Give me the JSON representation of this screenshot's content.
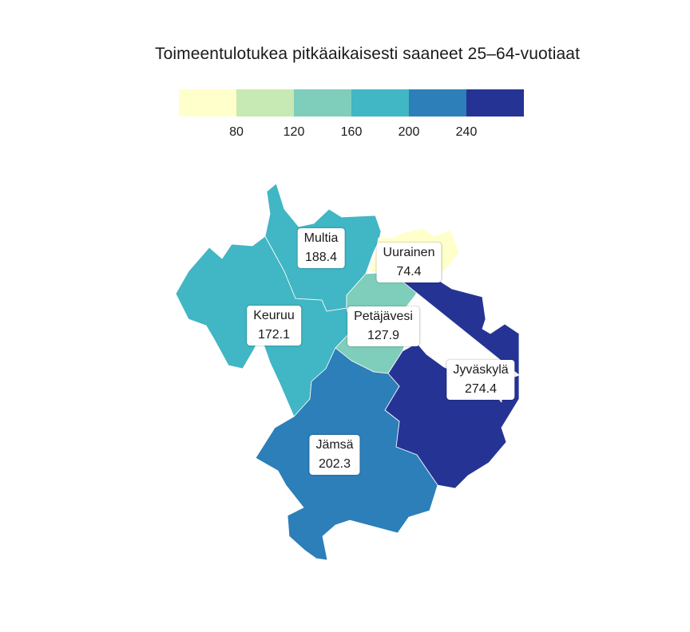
{
  "title": "Toimeentulotukea pitkäaikaisesti saaneet 25–64-vuotiaat",
  "legend": {
    "colors": [
      "#ffffcc",
      "#c7e9b4",
      "#7fcdbb",
      "#41b6c4",
      "#2c7fb8",
      "#253494"
    ],
    "breaks": [
      80,
      120,
      160,
      200,
      240
    ],
    "tick_labels": [
      "80",
      "120",
      "160",
      "200",
      "240"
    ]
  },
  "regions": [
    {
      "id": "multia",
      "name": "Multia",
      "value": 188.4,
      "value_label": "188.4",
      "color": "#41b6c4"
    },
    {
      "id": "uurainen",
      "name": "Uurainen",
      "value": 74.4,
      "value_label": "74.4",
      "color": "#ffffcc"
    },
    {
      "id": "keuruu",
      "name": "Keuruu",
      "value": 172.1,
      "value_label": "172.1",
      "color": "#41b6c4"
    },
    {
      "id": "petajavesi",
      "name": "Petäjävesi",
      "value": 127.9,
      "value_label": "127.9",
      "color": "#7fcdbb"
    },
    {
      "id": "jyvaskyla",
      "name": "Jyväskylä",
      "value": 274.4,
      "value_label": "274.4",
      "color": "#253494"
    },
    {
      "id": "jamsa",
      "name": "Jämsä",
      "value": 202.3,
      "value_label": "202.3",
      "color": "#2c7fb8"
    }
  ]
}
